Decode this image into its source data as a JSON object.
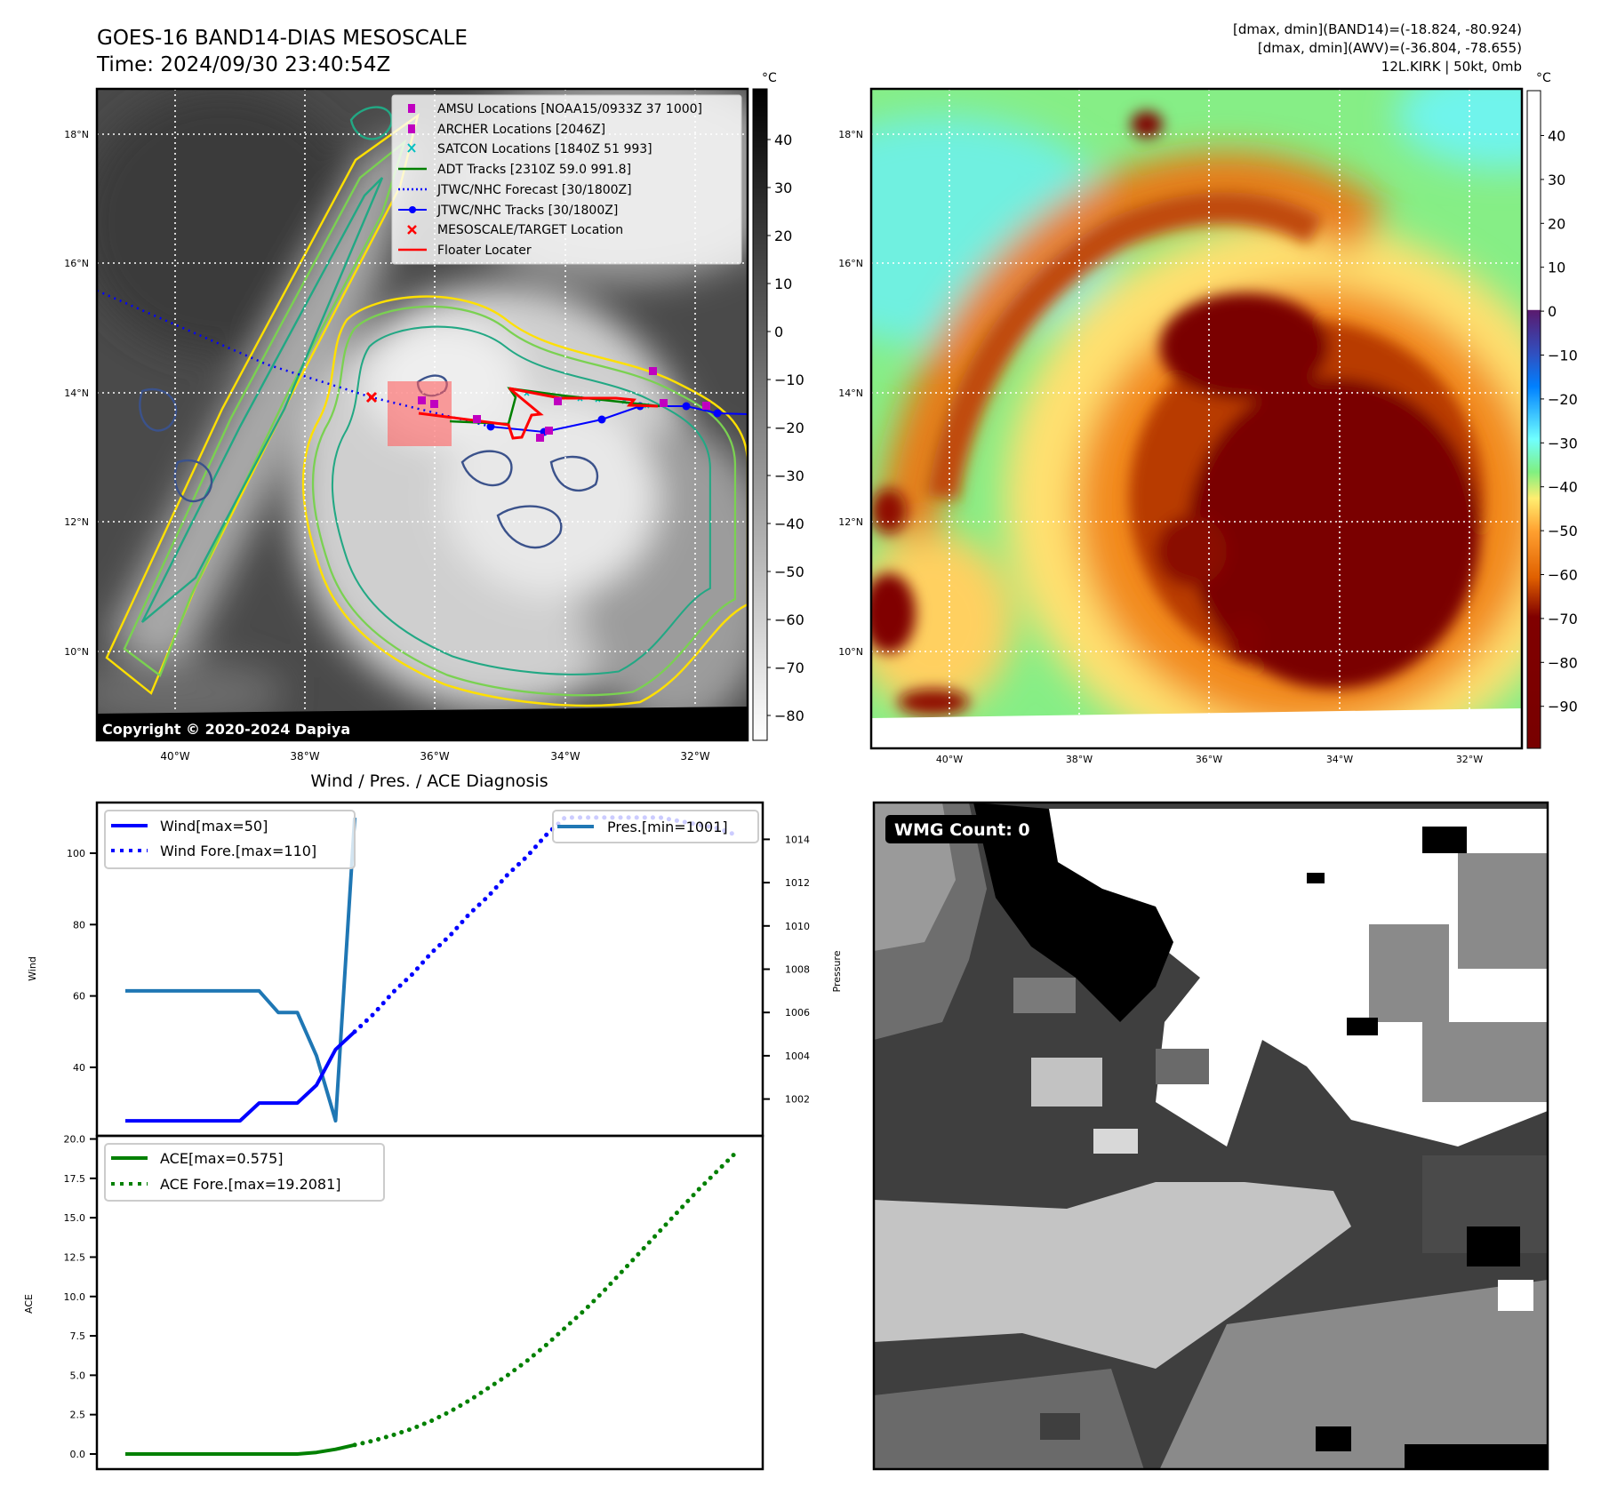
{
  "header": {
    "title": "GOES-16 BAND14-DIAS MESOSCALE",
    "time": "Time: 2024/09/30 23:40:54Z"
  },
  "stats": {
    "line1": "[dmax, dmin](BAND14)=(-18.824, -80.924)",
    "line2": "[dmax, dmin](AWV)=(-36.804, -78.655)",
    "line3": "12L.KIRK | 50kt, 0mb"
  },
  "ir_map": {
    "lat_labels": [
      "18°N",
      "16°N",
      "14°N",
      "12°N",
      "10°N"
    ],
    "lon_labels": [
      "40°W",
      "38°W",
      "36°W",
      "34°W",
      "32°W"
    ],
    "colorbar_unit": "°C",
    "colorbar_ticks": [
      "40",
      "30",
      "20",
      "10",
      "0",
      "−10",
      "−20",
      "−30",
      "−40",
      "−50",
      "−60",
      "−70",
      "−80"
    ],
    "copyright": "Copyright © 2020-2024 Dapiya",
    "legend": [
      "AMSU Locations [NOAA15/0933Z 37 1000]",
      "ARCHER Locations [2046Z]",
      "SATCON Locations [1840Z 51 993]",
      "ADT Tracks [2310Z 59.0 991.8]",
      "JTWC/NHC Forecast [30/1800Z]",
      "JTWC/NHC Tracks [30/1800Z]",
      "MESOSCALE/TARGET Location",
      "Floater Locater"
    ],
    "colors": {
      "amsu": "#c000c0",
      "archer": "#c000c0",
      "satcon": "#00c0c0",
      "adt": "#008000",
      "forecast": "#0000ff",
      "tracks": "#0000ff",
      "target": "#ff0000",
      "floater": "#ff0000"
    }
  },
  "awv_map": {
    "lat_labels": [
      "18°N",
      "16°N",
      "14°N",
      "12°N",
      "10°N"
    ],
    "lon_labels": [
      "40°W",
      "38°W",
      "36°W",
      "34°W",
      "32°W"
    ],
    "colorbar_unit": "°C",
    "colorbar_ticks": [
      "40",
      "30",
      "20",
      "10",
      "0",
      "−10",
      "−20",
      "−30",
      "−40",
      "−50",
      "−60",
      "−70",
      "−80",
      "−90"
    ]
  },
  "diagnosis": {
    "title": "Wind / Pres. / ACE Diagnosis",
    "wind_ylabel": "Wind",
    "pressure_ylabel": "Pressure",
    "ace_ylabel": "ACE",
    "legend_wind": "Wind[max=50]",
    "legend_wind_fore": "Wind Fore.[max=110]",
    "legend_pres": "Pres.[min=1001]",
    "legend_ace": "ACE[max=0.575]",
    "legend_ace_fore": "ACE Fore.[max=19.2081]"
  },
  "wmg": {
    "label": "WMG Count: 0"
  },
  "chart_data": [
    {
      "type": "line",
      "title": "Wind / Pres. / ACE Diagnosis",
      "xlabel": "",
      "ylabel": "Wind",
      "y2label": "Pressure",
      "ylim": [
        20.8,
        114.2
      ],
      "y2lim": [
        1000.3,
        1015.7
      ],
      "yticks": [
        40,
        60,
        80,
        100
      ],
      "y2ticks": [
        1002,
        1004,
        1006,
        1008,
        1010,
        1012,
        1014
      ],
      "series": [
        {
          "name": "Wind[max=50]",
          "color": "#0000ff",
          "style": "solid",
          "x": [
            0,
            1,
            2,
            3,
            4,
            5,
            6,
            7,
            8,
            9,
            10,
            11,
            12
          ],
          "values": [
            25,
            25,
            25,
            25,
            25,
            25,
            25,
            30,
            30,
            30,
            35,
            45,
            50
          ]
        },
        {
          "name": "Wind Fore.[max=110]",
          "color": "#0000ff",
          "style": "dotted",
          "x": [
            12,
            13,
            14,
            15,
            16,
            17,
            18,
            19,
            20,
            21,
            22,
            23,
            24,
            25,
            26,
            27,
            28,
            29,
            30,
            31,
            32
          ],
          "values": [
            50,
            55,
            61,
            66,
            72,
            77,
            83,
            88,
            94,
            99,
            105,
            110,
            110,
            110,
            110,
            110,
            110,
            109,
            108,
            107,
            105
          ]
        },
        {
          "name": "Pres.[min=1001]",
          "color": "#1f77b4",
          "style": "solid",
          "axis": "right",
          "x": [
            0,
            1,
            2,
            3,
            4,
            5,
            6,
            7,
            8,
            9,
            10,
            11,
            12
          ],
          "values": [
            1007,
            1007,
            1007,
            1007,
            1007,
            1007,
            1007,
            1007,
            1006,
            1006,
            1004,
            1001,
            1015
          ]
        }
      ]
    },
    {
      "type": "line",
      "xlabel": "",
      "ylabel": "ACE",
      "ylim": [
        -0.96,
        20.2
      ],
      "yticks": [
        0.0,
        2.5,
        5.0,
        7.5,
        10.0,
        12.5,
        15.0,
        17.5,
        20.0
      ],
      "series": [
        {
          "name": "ACE[max=0.575]",
          "color": "#008000",
          "style": "solid",
          "x": [
            0,
            1,
            2,
            3,
            4,
            5,
            6,
            7,
            8,
            9,
            10,
            11,
            12
          ],
          "values": [
            0,
            0,
            0,
            0,
            0,
            0,
            0,
            0,
            0,
            0,
            0.1,
            0.3,
            0.575
          ]
        },
        {
          "name": "ACE Fore.[max=19.2081]",
          "color": "#008000",
          "style": "dotted",
          "x": [
            12,
            13,
            14,
            15,
            16,
            17,
            18,
            19,
            20,
            21,
            22,
            23,
            24,
            25,
            26,
            27,
            28,
            29,
            30,
            31,
            32
          ],
          "values": [
            0.575,
            0.85,
            1.2,
            1.6,
            2.1,
            2.7,
            3.4,
            4.2,
            5.0,
            5.9,
            6.9,
            8.0,
            9.1,
            10.3,
            11.6,
            12.9,
            14.2,
            15.5,
            16.8,
            18.0,
            19.2
          ]
        }
      ]
    }
  ]
}
